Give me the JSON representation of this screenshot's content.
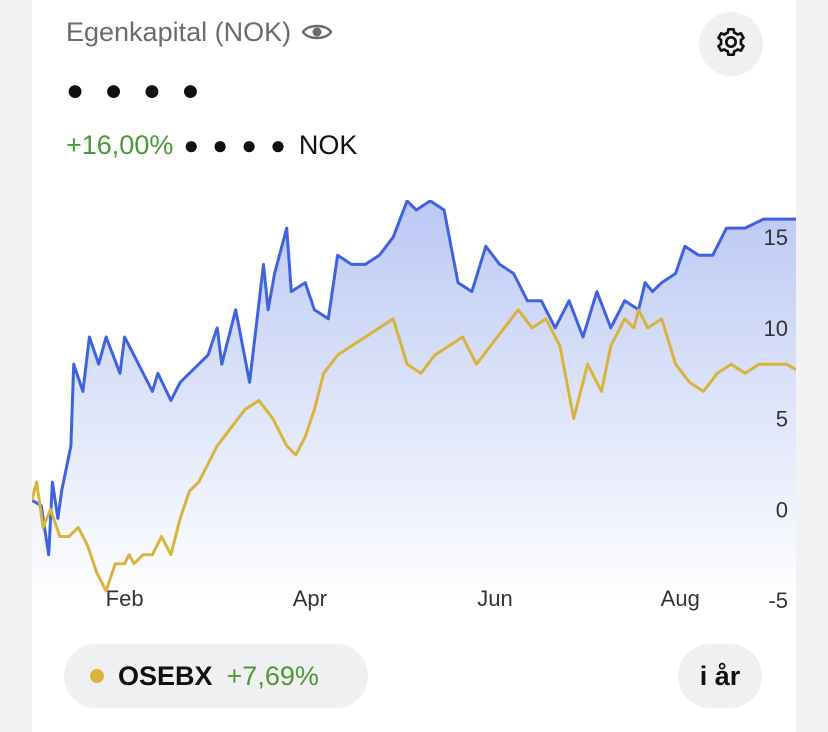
{
  "header": {
    "title": "Egenkapital (NOK)",
    "masked_value": "● ● ● ●",
    "change_pct": "+16,00%",
    "masked_change": "● ● ● ●",
    "currency": "NOK"
  },
  "icons": {
    "eye": "eye-icon",
    "settings": "gear-icon"
  },
  "colors": {
    "portfolio": "#3f63e0",
    "benchmark": "#d9b43c",
    "positive": "#4a9a34"
  },
  "benchmark": {
    "name": "OSEBX",
    "change_pct": "+7,69%"
  },
  "period_button": "i år",
  "chart_data": {
    "type": "line",
    "ylim": [
      -5,
      16.5
    ],
    "yticks": [
      15,
      10,
      5,
      0,
      -5
    ],
    "xticks": [
      {
        "label": "Feb",
        "at": 1
      },
      {
        "label": "Apr",
        "at": 3
      },
      {
        "label": "Jun",
        "at": 5
      },
      {
        "label": "Aug",
        "at": 7
      }
    ],
    "xlim": [
      0,
      8.25
    ],
    "series": [
      {
        "key": "portfolio",
        "x": [
          0,
          0.1,
          0.12,
          0.18,
          0.22,
          0.28,
          0.32,
          0.42,
          0.45,
          0.55,
          0.62,
          0.72,
          0.8,
          0.95,
          1.0,
          1.1,
          1.3,
          1.36,
          1.5,
          1.6,
          1.7,
          1.9,
          2.0,
          2.05,
          2.2,
          2.35,
          2.5,
          2.55,
          2.62,
          2.75,
          2.8,
          2.95,
          3.05,
          3.2,
          3.3,
          3.45,
          3.6,
          3.75,
          3.9,
          4.05,
          4.15,
          4.3,
          4.45,
          4.6,
          4.75,
          4.9,
          5.05,
          5.2,
          5.35,
          5.5,
          5.65,
          5.8,
          5.95,
          6.1,
          6.25,
          6.4,
          6.55,
          6.62,
          6.7,
          6.8,
          6.95,
          7.05,
          7.2,
          7.35,
          7.5,
          7.7,
          7.9,
          8.05,
          8.2,
          8.25
        ],
        "y": [
          0.5,
          0.2,
          -0.5,
          -2.5,
          1.5,
          -0.5,
          1.0,
          3.5,
          8.0,
          6.5,
          9.5,
          8.0,
          9.5,
          7.5,
          9.5,
          8.5,
          6.5,
          7.5,
          6.0,
          7.0,
          7.5,
          8.5,
          10.0,
          8.0,
          11.0,
          7.0,
          13.5,
          11.0,
          13.0,
          15.5,
          12.0,
          12.5,
          11.0,
          10.5,
          14.0,
          13.5,
          13.5,
          14.0,
          15.0,
          17.0,
          16.5,
          17.0,
          16.5,
          12.5,
          12.0,
          14.5,
          13.5,
          13.0,
          11.5,
          11.5,
          10.0,
          11.5,
          9.5,
          12.0,
          10.0,
          11.5,
          11.0,
          12.5,
          12.0,
          12.5,
          13.0,
          14.5,
          14.0,
          14.0,
          15.5,
          15.5,
          16.0,
          16.0,
          16.0,
          16.0
        ]
      },
      {
        "key": "benchmark",
        "x": [
          0,
          0.05,
          0.12,
          0.2,
          0.3,
          0.4,
          0.5,
          0.6,
          0.7,
          0.8,
          0.9,
          1.0,
          1.05,
          1.1,
          1.2,
          1.3,
          1.4,
          1.5,
          1.6,
          1.7,
          1.8,
          1.9,
          2.0,
          2.15,
          2.3,
          2.45,
          2.6,
          2.75,
          2.85,
          2.95,
          3.05,
          3.15,
          3.3,
          3.45,
          3.6,
          3.75,
          3.9,
          4.05,
          4.2,
          4.35,
          4.5,
          4.65,
          4.8,
          4.95,
          5.1,
          5.25,
          5.4,
          5.55,
          5.7,
          5.85,
          6.0,
          6.15,
          6.25,
          6.4,
          6.5,
          6.55,
          6.65,
          6.8,
          6.95,
          7.1,
          7.25,
          7.4,
          7.55,
          7.7,
          7.85,
          8.0,
          8.15,
          8.25
        ],
        "y": [
          0.5,
          1.5,
          -1.0,
          0.0,
          -1.5,
          -1.5,
          -1.0,
          -2.0,
          -3.5,
          -4.5,
          -3.0,
          -3.0,
          -2.5,
          -3.0,
          -2.5,
          -2.5,
          -1.5,
          -2.5,
          -0.5,
          1.0,
          1.5,
          2.5,
          3.5,
          4.5,
          5.5,
          6.0,
          5.0,
          3.5,
          3.0,
          4.0,
          5.5,
          7.5,
          8.5,
          9.0,
          9.5,
          10.0,
          10.5,
          8.0,
          7.5,
          8.5,
          9.0,
          9.5,
          8.0,
          9.0,
          10.0,
          11.0,
          10.0,
          10.5,
          9.0,
          5.0,
          8.0,
          6.5,
          9.0,
          10.5,
          10.0,
          11.0,
          10.0,
          10.5,
          8.0,
          7.0,
          6.5,
          7.5,
          8.0,
          7.5,
          8.0,
          8.0,
          8.0,
          7.69
        ]
      }
    ]
  }
}
